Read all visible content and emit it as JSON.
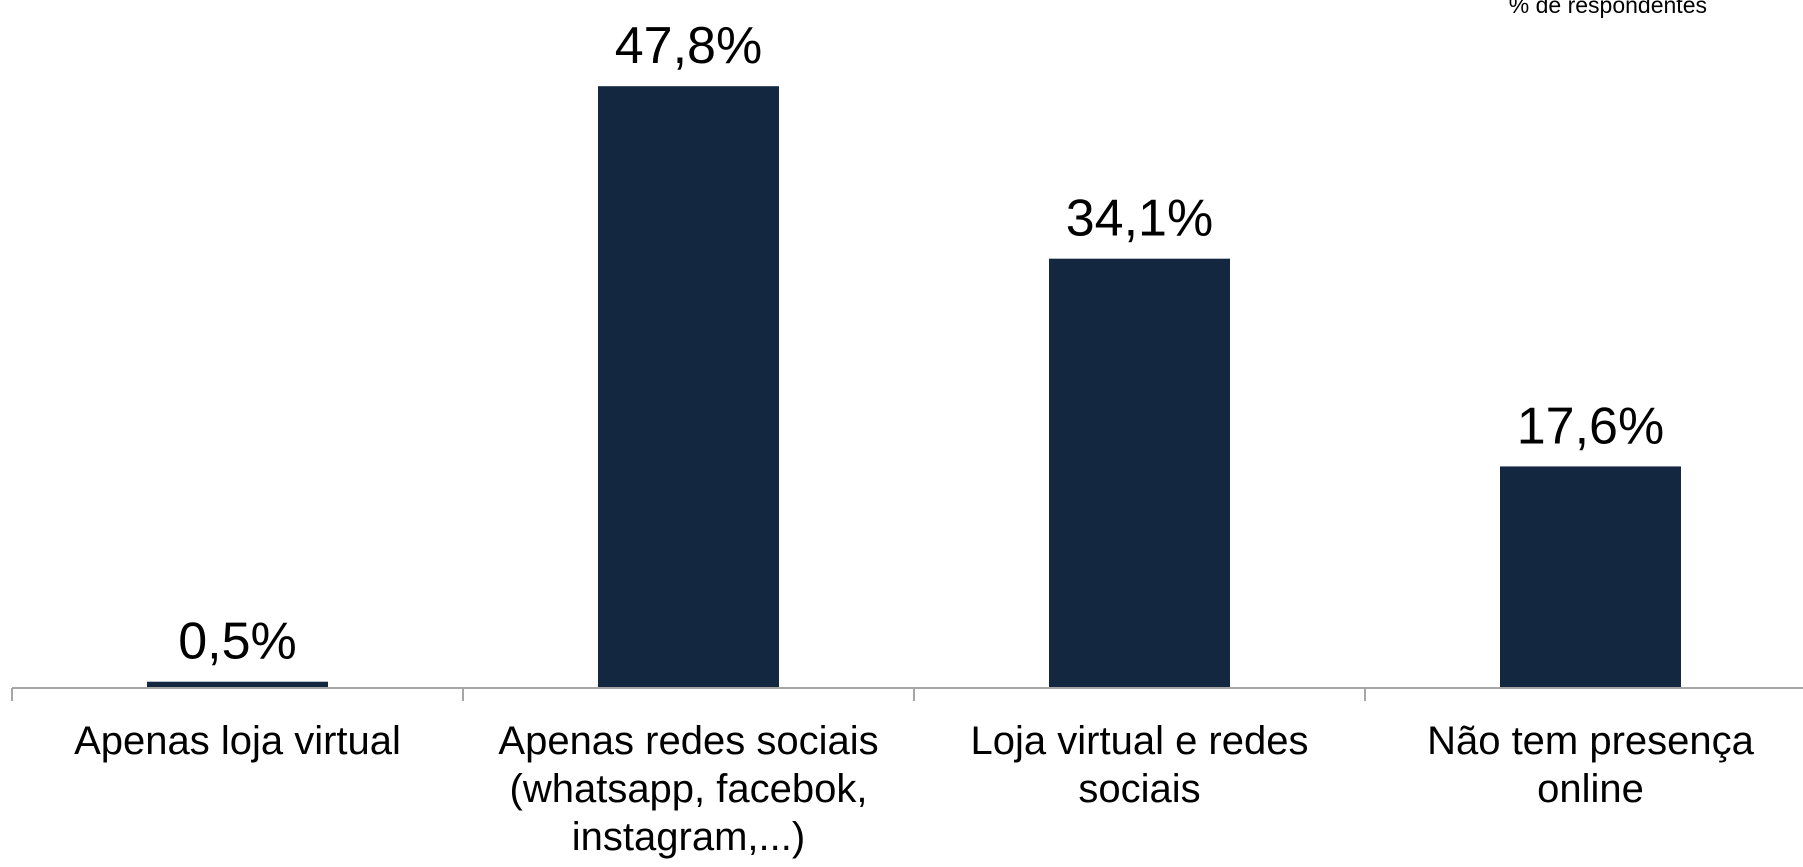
{
  "chart_data": {
    "type": "bar",
    "units_note": "% de respondentes",
    "categories": [
      [
        "Apenas loja virtual"
      ],
      [
        "Apenas redes sociais",
        "(whatsapp, facebok,",
        "instagram,...)"
      ],
      [
        "Loja virtual e redes",
        "sociais"
      ],
      [
        "Não tem presença",
        "online"
      ]
    ],
    "values": [
      0.5,
      47.8,
      34.1,
      17.6
    ],
    "data_labels": [
      "0,5%",
      "47,8%",
      "34,1%",
      "17,6%"
    ],
    "ylim": [
      0,
      50
    ],
    "grid": false,
    "legend": "none",
    "colors": {
      "bar": "#132741",
      "axis": "#a6a6a6",
      "text": "#000000"
    }
  }
}
